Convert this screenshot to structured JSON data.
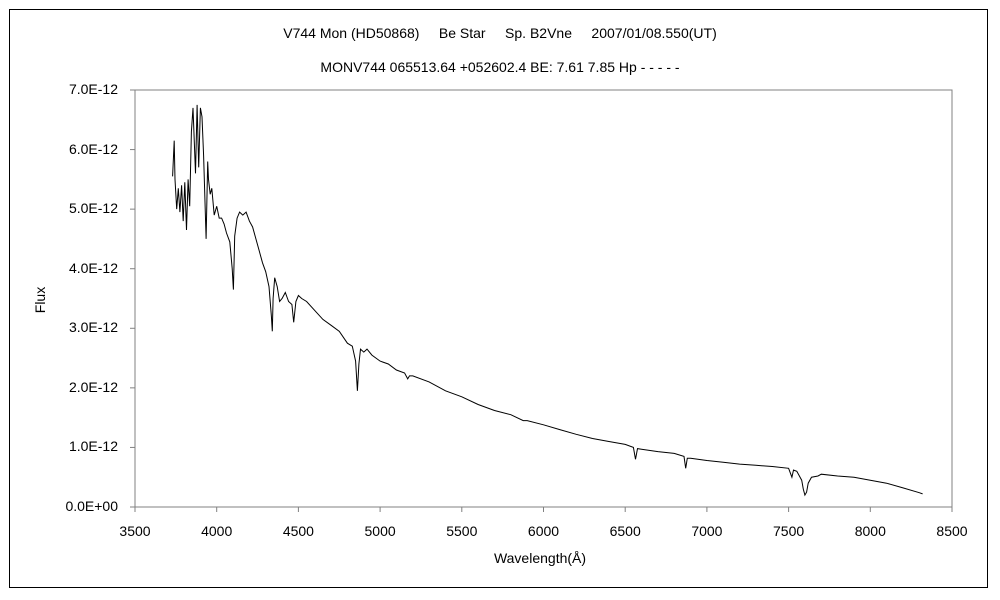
{
  "chart_data": {
    "type": "line",
    "title": "V744 Mon (HD50868)     Be Star     Sp. B2Vne     2007/01/08.550(UT)",
    "subtitle": "MONV744 065513.64 +052602.4 BE: 7.61 7.85 Hp - - - - -",
    "xlabel": "Wavelength(Å)",
    "ylabel": "Flux",
    "xlim": [
      3500,
      8500
    ],
    "ylim": [
      0,
      7e-12
    ],
    "xticks": [
      "3500",
      "4000",
      "4500",
      "5000",
      "5500",
      "6000",
      "6500",
      "7000",
      "7500",
      "8000",
      "8500"
    ],
    "yticks": [
      "0.0E+00",
      "1.0E-12",
      "2.0E-12",
      "3.0E-12",
      "4.0E-12",
      "5.0E-12",
      "6.0E-12",
      "7.0E-12"
    ],
    "grid": false,
    "legend": "none",
    "series": [
      {
        "color": "#000000",
        "x": [
          3730,
          3740,
          3745,
          3755,
          3765,
          3775,
          3785,
          3795,
          3805,
          3815,
          3825,
          3835,
          3845,
          3855,
          3870,
          3880,
          3890,
          3900,
          3910,
          3920,
          3935,
          3945,
          3950,
          3960,
          3970,
          3985,
          4000,
          4015,
          4030,
          4045,
          4060,
          4080,
          4095,
          4102,
          4110,
          4125,
          4140,
          4160,
          4180,
          4200,
          4220,
          4240,
          4260,
          4280,
          4300,
          4320,
          4335,
          4340,
          4345,
          4355,
          4370,
          4385,
          4400,
          4420,
          4440,
          4460,
          4471,
          4485,
          4500,
          4520,
          4550,
          4600,
          4650,
          4700,
          4750,
          4800,
          4830,
          4850,
          4861,
          4870,
          4880,
          4900,
          4920,
          4950,
          5000,
          5050,
          5100,
          5150,
          5169,
          5180,
          5200,
          5300,
          5400,
          5500,
          5600,
          5700,
          5800,
          5876,
          5900,
          6000,
          6100,
          6200,
          6300,
          6400,
          6500,
          6550,
          6563,
          6575,
          6600,
          6700,
          6800,
          6860,
          6870,
          6880,
          6900,
          7000,
          7100,
          7200,
          7300,
          7400,
          7500,
          7520,
          7530,
          7550,
          7580,
          7590,
          7600,
          7610,
          7620,
          7640,
          7680,
          7700,
          7800,
          7900,
          8000,
          8100,
          8200,
          8300,
          8320
        ],
        "values": [
          5.55e-12,
          6.15e-12,
          5.5e-12,
          5e-12,
          5.35e-12,
          4.95e-12,
          5.4e-12,
          4.8e-12,
          5.45e-12,
          4.65e-12,
          5.5e-12,
          5.05e-12,
          6.3e-12,
          6.7e-12,
          5.6e-12,
          6.75e-12,
          5.7e-12,
          6.7e-12,
          6.55e-12,
          5.9e-12,
          4.5e-12,
          5.8e-12,
          5.5e-12,
          5.25e-12,
          5.35e-12,
          4.9e-12,
          5.05e-12,
          4.85e-12,
          4.85e-12,
          4.75e-12,
          4.6e-12,
          4.45e-12,
          4e-12,
          3.65e-12,
          4.55e-12,
          4.85e-12,
          4.95e-12,
          4.9e-12,
          4.95e-12,
          4.8e-12,
          4.7e-12,
          4.5e-12,
          4.3e-12,
          4.1e-12,
          3.95e-12,
          3.7e-12,
          3.2e-12,
          2.95e-12,
          3.5e-12,
          3.85e-12,
          3.7e-12,
          3.45e-12,
          3.5e-12,
          3.6e-12,
          3.45e-12,
          3.4e-12,
          3.1e-12,
          3.45e-12,
          3.55e-12,
          3.5e-12,
          3.45e-12,
          3.3e-12,
          3.15e-12,
          3.05e-12,
          2.95e-12,
          2.75e-12,
          2.7e-12,
          2.45e-12,
          1.95e-12,
          2.4e-12,
          2.65e-12,
          2.6e-12,
          2.65e-12,
          2.55e-12,
          2.45e-12,
          2.4e-12,
          2.3e-12,
          2.25e-12,
          2.15e-12,
          2.2e-12,
          2.2e-12,
          2.1e-12,
          1.95e-12,
          1.85e-12,
          1.72e-12,
          1.62e-12,
          1.55e-12,
          1.45e-12,
          1.45e-12,
          1.38e-12,
          1.3e-12,
          1.22e-12,
          1.15e-12,
          1.1e-12,
          1.05e-12,
          1e-12,
          8e-13,
          9.8e-13,
          9.7e-13,
          9.3e-13,
          9e-13,
          8.5e-13,
          6.5e-13,
          8.2e-13,
          8.2e-13,
          7.8e-13,
          7.5e-13,
          7.2e-13,
          7e-13,
          6.8e-13,
          6.5e-13,
          5e-13,
          6.2e-13,
          6e-13,
          4.5e-13,
          3e-13,
          2e-13,
          2.5e-13,
          4e-13,
          5e-13,
          5.2e-13,
          5.5e-13,
          5.2e-13,
          5e-13,
          4.5e-13,
          4e-13,
          3.2e-13,
          2.4e-13,
          2.2e-13
        ]
      }
    ]
  }
}
